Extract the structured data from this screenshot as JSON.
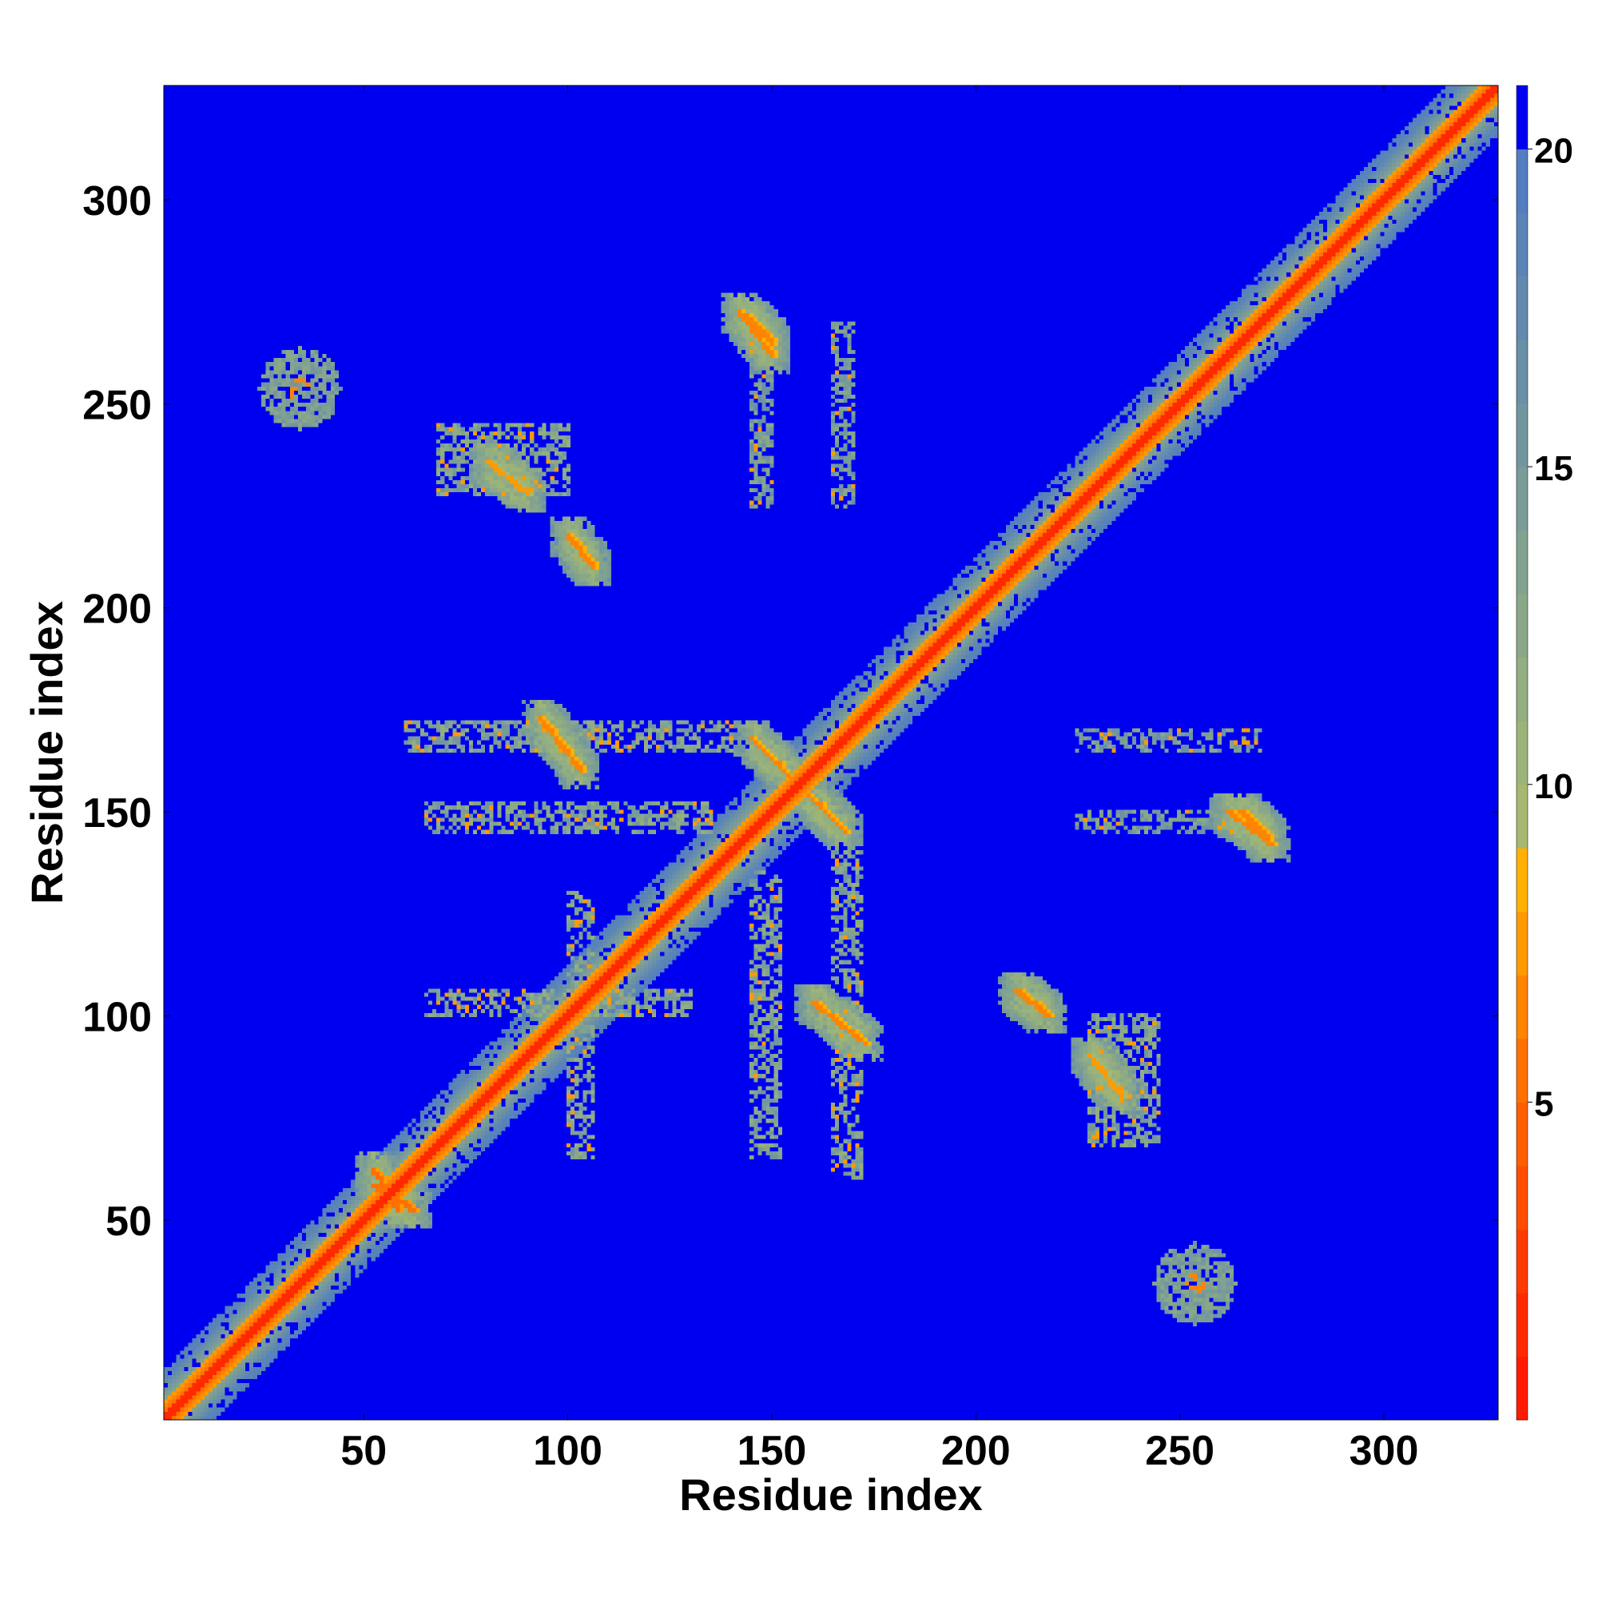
{
  "chart_data": {
    "type": "heatmap",
    "title": "",
    "xlabel": "Residue index",
    "ylabel": "Residue index",
    "n_residues": 328,
    "xlim": [
      1,
      328
    ],
    "ylim": [
      1,
      328
    ],
    "x_ticks": [
      50,
      100,
      150,
      200,
      250,
      300
    ],
    "y_ticks": [
      50,
      100,
      150,
      200,
      250,
      300
    ],
    "colorbar": {
      "label": "",
      "range": [
        0,
        21
      ],
      "ticks": [
        5,
        10,
        15,
        20
      ],
      "levels": [
        {
          "from": 0,
          "to": 1,
          "color": "#ff1a00"
        },
        {
          "from": 1,
          "to": 2,
          "color": "#ff2a00"
        },
        {
          "from": 2,
          "to": 3,
          "color": "#ff3a00"
        },
        {
          "from": 3,
          "to": 4,
          "color": "#ff4c00"
        },
        {
          "from": 4,
          "to": 5,
          "color": "#ff5e00"
        },
        {
          "from": 5,
          "to": 6,
          "color": "#ff7000"
        },
        {
          "from": 6,
          "to": 7,
          "color": "#ff8400"
        },
        {
          "from": 7,
          "to": 8,
          "color": "#ff9a00"
        },
        {
          "from": 8,
          "to": 9,
          "color": "#ffb000"
        },
        {
          "from": 9,
          "to": 10,
          "color": "#a7b870"
        },
        {
          "from": 10,
          "to": 11,
          "color": "#9cb478"
        },
        {
          "from": 11,
          "to": 12,
          "color": "#93ae80"
        },
        {
          "from": 12,
          "to": 13,
          "color": "#8aa888"
        },
        {
          "from": 13,
          "to": 14,
          "color": "#82a290"
        },
        {
          "from": 14,
          "to": 15,
          "color": "#7a9c98"
        },
        {
          "from": 15,
          "to": 16,
          "color": "#7296a0"
        },
        {
          "from": 16,
          "to": 17,
          "color": "#6a90a8"
        },
        {
          "from": 17,
          "to": 18,
          "color": "#628ab0"
        },
        {
          "from": 18,
          "to": 19,
          "color": "#5a84b8"
        },
        {
          "from": 19,
          "to": 20,
          "color": "#527ec0"
        },
        {
          "from": 20,
          "to": 21,
          "color": "#0000f0"
        }
      ]
    },
    "background_color": "#0000f0",
    "contact_regions": [
      {
        "type": "diagonal",
        "x": [
          1,
          328
        ],
        "width_residues": 4,
        "value": 2
      },
      {
        "type": "diagonal_band",
        "x": [
          1,
          328
        ],
        "width_residues": 12,
        "value": 11
      },
      {
        "type": "blob",
        "x": 34,
        "y": 254,
        "rx": 10,
        "ry": 10,
        "value": 14
      },
      {
        "type": "blob",
        "x": 254,
        "y": 34,
        "rx": 10,
        "ry": 10,
        "value": 14
      },
      {
        "type": "segment",
        "x": [
          93,
          103
        ],
        "y": [
          173,
          160
        ],
        "value": 6
      },
      {
        "type": "segment",
        "x": [
          160,
          173
        ],
        "y": [
          103,
          93
        ],
        "value": 6
      },
      {
        "type": "segment",
        "x": [
          100,
          106
        ],
        "y": [
          218,
          210
        ],
        "value": 6
      },
      {
        "type": "segment",
        "x": [
          210,
          218
        ],
        "y": [
          106,
          100
        ],
        "value": 6
      },
      {
        "type": "segment",
        "x": [
          142,
          150
        ],
        "y": [
          273,
          262
        ],
        "value": 6
      },
      {
        "type": "segment",
        "x": [
          262,
          273
        ],
        "y": [
          150,
          142
        ],
        "value": 6
      },
      {
        "type": "segment",
        "x": [
          80,
          90
        ],
        "y": [
          236,
          228
        ],
        "value": 7
      },
      {
        "type": "segment",
        "x": [
          228,
          236
        ],
        "y": [
          90,
          80
        ],
        "value": 7
      },
      {
        "type": "segment",
        "x": [
          145,
          158
        ],
        "y": [
          168,
          155
        ],
        "value": 6
      },
      {
        "type": "segment",
        "x": [
          155,
          168
        ],
        "y": [
          158,
          145
        ],
        "value": 6
      },
      {
        "type": "segment",
        "x": [
          52,
          58
        ],
        "y": [
          62,
          52
        ],
        "value": 5
      },
      {
        "type": "segment",
        "x": [
          52,
          62
        ],
        "y": [
          58,
          52
        ],
        "value": 5
      },
      {
        "type": "band",
        "x": [
          60,
          140
        ],
        "y": [
          165,
          172
        ],
        "value": 12
      },
      {
        "type": "band",
        "x": [
          165,
          172
        ],
        "y": [
          60,
          140
        ],
        "value": 12
      },
      {
        "type": "band",
        "x": [
          65,
          135
        ],
        "y": [
          145,
          152
        ],
        "value": 12
      },
      {
        "type": "band",
        "x": [
          145,
          152
        ],
        "y": [
          65,
          135
        ],
        "value": 12
      },
      {
        "type": "band",
        "x": [
          65,
          130
        ],
        "y": [
          100,
          106
        ],
        "value": 12
      },
      {
        "type": "band",
        "x": [
          100,
          106
        ],
        "y": [
          65,
          130
        ],
        "value": 12
      },
      {
        "type": "band",
        "x": [
          225,
          270
        ],
        "y": [
          145,
          150
        ],
        "value": 13
      },
      {
        "type": "band",
        "x": [
          145,
          150
        ],
        "y": [
          225,
          270
        ],
        "value": 13
      },
      {
        "type": "band",
        "x": [
          225,
          270
        ],
        "y": [
          165,
          170
        ],
        "value": 13
      },
      {
        "type": "band",
        "x": [
          165,
          170
        ],
        "y": [
          225,
          270
        ],
        "value": 13
      },
      {
        "type": "band",
        "x": [
          228,
          245
        ],
        "y": [
          68,
          100
        ],
        "value": 12
      },
      {
        "type": "band",
        "x": [
          68,
          100
        ],
        "y": [
          228,
          245
        ],
        "value": 12
      },
      {
        "type": "segment",
        "x": [
          265,
          272
        ],
        "y": [
          150,
          144
        ],
        "value": 6
      },
      {
        "type": "segment",
        "x": [
          144,
          150
        ],
        "y": [
          272,
          265
        ],
        "value": 6
      }
    ]
  }
}
